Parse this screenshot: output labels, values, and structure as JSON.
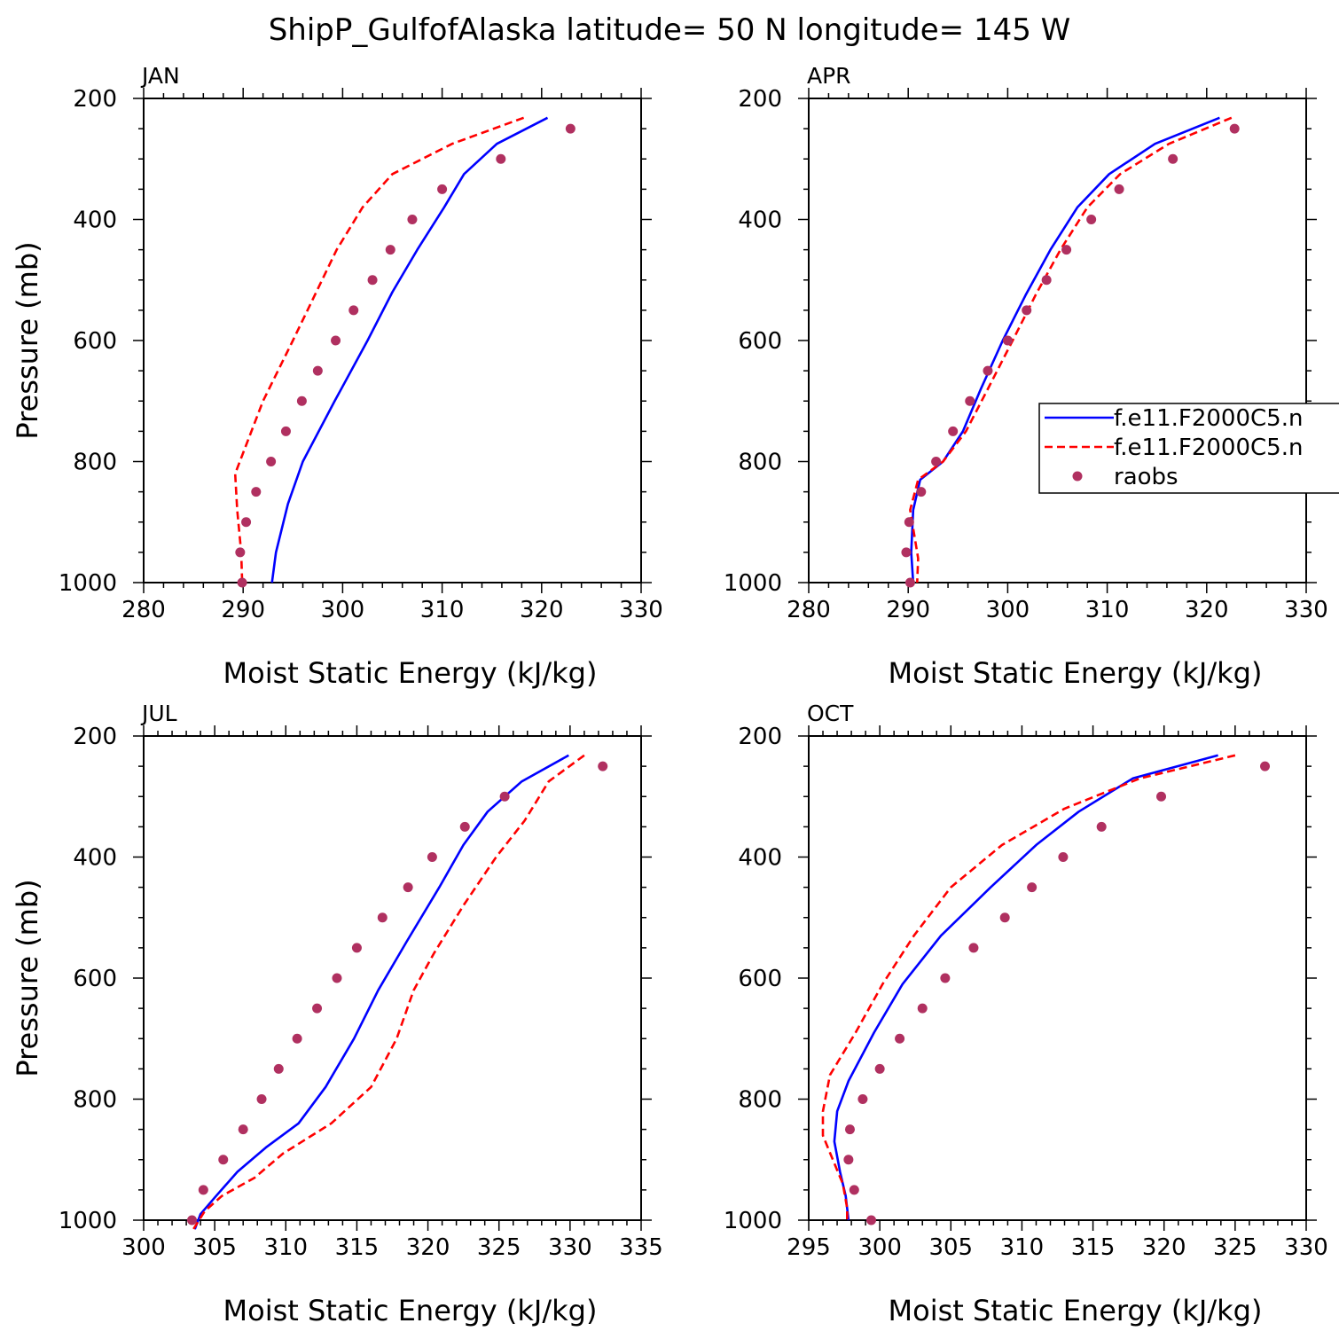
{
  "title": "ShipP_GulfofAlaska  latitude= 50 N longitude= 145 W",
  "legend": {
    "entries": [
      {
        "label": "f.e11.F2000C5.n",
        "color": "#0000ff",
        "style": "solid"
      },
      {
        "label": "f.e11.F2000C5.n",
        "color": "#ff0000",
        "style": "dashed"
      },
      {
        "label": "raobs",
        "color": "#b03060",
        "style": "dot"
      }
    ]
  },
  "chart_data": [
    {
      "type": "line",
      "panel_label": "JAN",
      "xlabel": "Moist Static Energy (kJ/kg)",
      "ylabel": "Pressure (mb)",
      "xlim": [
        280,
        330
      ],
      "ylim": [
        1000,
        200
      ],
      "y_reversed": true,
      "xticks": [
        280,
        290,
        300,
        310,
        320,
        330
      ],
      "yticks": [
        200,
        400,
        600,
        800,
        1000
      ],
      "series": [
        {
          "color": "#0000ff",
          "style": "solid",
          "points": [
            [
              320.6,
              232
            ],
            [
              315.5,
              275
            ],
            [
              312.2,
              325
            ],
            [
              310.2,
              380
            ],
            [
              307.5,
              450
            ],
            [
              305.0,
              520
            ],
            [
              302.5,
              600
            ],
            [
              299.2,
              700
            ],
            [
              296.0,
              800
            ],
            [
              294.5,
              870
            ],
            [
              293.3,
              950
            ],
            [
              292.9,
              1000
            ]
          ]
        },
        {
          "color": "#ff0000",
          "style": "dashed",
          "points": [
            [
              318.2,
              232
            ],
            [
              311.0,
              275
            ],
            [
              305.0,
              325
            ],
            [
              302.0,
              380
            ],
            [
              299.4,
              450
            ],
            [
              297.2,
              525
            ],
            [
              295.0,
              600
            ],
            [
              292.0,
              700
            ],
            [
              289.2,
              820
            ],
            [
              289.4,
              880
            ],
            [
              289.8,
              950
            ],
            [
              289.9,
              1000
            ]
          ]
        },
        {
          "color": "#b03060",
          "style": "dot",
          "points": [
            [
              322.9,
              250
            ],
            [
              315.9,
              300
            ],
            [
              310.0,
              350
            ],
            [
              307.0,
              400
            ],
            [
              304.8,
              450
            ],
            [
              303.0,
              500
            ],
            [
              301.1,
              550
            ],
            [
              299.3,
              600
            ],
            [
              297.5,
              650
            ],
            [
              295.9,
              700
            ],
            [
              294.3,
              750
            ],
            [
              292.8,
              800
            ],
            [
              291.3,
              850
            ],
            [
              290.3,
              900
            ],
            [
              289.7,
              950
            ],
            [
              289.9,
              1000
            ]
          ]
        }
      ]
    },
    {
      "type": "line",
      "panel_label": "APR",
      "xlabel": "Moist Static Energy (kJ/kg)",
      "ylabel": "",
      "xlim": [
        280,
        330
      ],
      "ylim": [
        1000,
        200
      ],
      "y_reversed": true,
      "xticks": [
        280,
        290,
        300,
        310,
        320,
        330
      ],
      "yticks": [
        200,
        400,
        600,
        800,
        1000
      ],
      "series": [
        {
          "color": "#0000ff",
          "style": "solid",
          "points": [
            [
              321.3,
              232
            ],
            [
              314.8,
              275
            ],
            [
              310.2,
              325
            ],
            [
              307.0,
              380
            ],
            [
              304.3,
              450
            ],
            [
              301.8,
              525
            ],
            [
              299.5,
              600
            ],
            [
              297.3,
              680
            ],
            [
              295.5,
              750
            ],
            [
              293.5,
              800
            ],
            [
              291.2,
              830
            ],
            [
              290.5,
              880
            ],
            [
              290.3,
              950
            ],
            [
              290.5,
              1000
            ]
          ]
        },
        {
          "color": "#ff0000",
          "style": "dashed",
          "points": [
            [
              322.5,
              232
            ],
            [
              316.2,
              275
            ],
            [
              311.3,
              325
            ],
            [
              308.0,
              380
            ],
            [
              305.3,
              450
            ],
            [
              302.8,
              525
            ],
            [
              300.5,
              600
            ],
            [
              298.0,
              680
            ],
            [
              295.8,
              750
            ],
            [
              293.5,
              800
            ],
            [
              291.0,
              830
            ],
            [
              290.2,
              880
            ],
            [
              290.6,
              920
            ],
            [
              291.0,
              960
            ],
            [
              290.9,
              1000
            ]
          ]
        },
        {
          "color": "#b03060",
          "style": "dot",
          "points": [
            [
              322.8,
              250
            ],
            [
              316.6,
              300
            ],
            [
              311.2,
              350
            ],
            [
              308.4,
              400
            ],
            [
              305.9,
              450
            ],
            [
              303.9,
              500
            ],
            [
              301.9,
              550
            ],
            [
              300.0,
              600
            ],
            [
              298.0,
              650
            ],
            [
              296.2,
              700
            ],
            [
              294.5,
              750
            ],
            [
              292.8,
              800
            ],
            [
              291.3,
              850
            ],
            [
              290.1,
              900
            ],
            [
              289.8,
              950
            ],
            [
              290.2,
              1000
            ]
          ]
        }
      ]
    },
    {
      "type": "line",
      "panel_label": "JUL",
      "xlabel": "Moist Static Energy (kJ/kg)",
      "ylabel": "Pressure (mb)",
      "xlim": [
        300,
        335
      ],
      "ylim": [
        1000,
        200
      ],
      "y_reversed": true,
      "xticks": [
        300,
        305,
        310,
        315,
        320,
        325,
        330,
        335
      ],
      "yticks": [
        200,
        400,
        600,
        800,
        1000
      ],
      "series": [
        {
          "color": "#0000ff",
          "style": "solid",
          "points": [
            [
              329.9,
              232
            ],
            [
              326.6,
              275
            ],
            [
              324.2,
              325
            ],
            [
              322.5,
              380
            ],
            [
              320.8,
              450
            ],
            [
              318.5,
              540
            ],
            [
              316.5,
              620
            ],
            [
              314.8,
              700
            ],
            [
              312.8,
              780
            ],
            [
              310.9,
              840
            ],
            [
              308.6,
              880
            ],
            [
              306.6,
              920
            ],
            [
              305.1,
              960
            ],
            [
              304.0,
              990
            ],
            [
              303.6,
              1015
            ]
          ]
        },
        {
          "color": "#ff0000",
          "style": "dashed",
          "points": [
            [
              331.0,
              232
            ],
            [
              328.5,
              275
            ],
            [
              326.8,
              340
            ],
            [
              324.8,
              400
            ],
            [
              322.5,
              480
            ],
            [
              320.4,
              560
            ],
            [
              319.0,
              620
            ],
            [
              317.8,
              700
            ],
            [
              316.0,
              780
            ],
            [
              313.2,
              840
            ],
            [
              309.8,
              890
            ],
            [
              307.8,
              930
            ],
            [
              305.5,
              960
            ],
            [
              304.3,
              985
            ],
            [
              303.5,
              1015
            ]
          ]
        },
        {
          "color": "#b03060",
          "style": "dot",
          "points": [
            [
              332.3,
              250
            ],
            [
              325.4,
              300
            ],
            [
              322.6,
              350
            ],
            [
              320.3,
              400
            ],
            [
              318.6,
              450
            ],
            [
              316.8,
              500
            ],
            [
              315.0,
              550
            ],
            [
              313.6,
              600
            ],
            [
              312.2,
              650
            ],
            [
              310.8,
              700
            ],
            [
              309.5,
              750
            ],
            [
              308.3,
              800
            ],
            [
              307.0,
              850
            ],
            [
              305.6,
              900
            ],
            [
              304.2,
              950
            ],
            [
              303.4,
              1000
            ]
          ]
        }
      ]
    },
    {
      "type": "line",
      "panel_label": "OCT",
      "xlabel": "Moist Static Energy (kJ/kg)",
      "ylabel": "",
      "xlim": [
        295,
        330
      ],
      "ylim": [
        1000,
        200
      ],
      "y_reversed": true,
      "xticks": [
        295,
        300,
        305,
        310,
        315,
        320,
        325,
        330
      ],
      "yticks": [
        200,
        400,
        600,
        800,
        1000
      ],
      "series": [
        {
          "color": "#0000ff",
          "style": "solid",
          "points": [
            [
              323.8,
              232
            ],
            [
              317.8,
              270
            ],
            [
              314.0,
              325
            ],
            [
              311.0,
              380
            ],
            [
              307.8,
              450
            ],
            [
              304.3,
              530
            ],
            [
              301.6,
              610
            ],
            [
              299.6,
              690
            ],
            [
              297.8,
              770
            ],
            [
              297.0,
              820
            ],
            [
              296.8,
              870
            ],
            [
              297.2,
              920
            ],
            [
              297.6,
              960
            ],
            [
              297.8,
              1000
            ]
          ]
        },
        {
          "color": "#ff0000",
          "style": "dashed",
          "points": [
            [
              325.0,
              232
            ],
            [
              318.3,
              270
            ],
            [
              313.0,
              320
            ],
            [
              308.6,
              380
            ],
            [
              305.0,
              450
            ],
            [
              302.4,
              530
            ],
            [
              300.2,
              610
            ],
            [
              298.3,
              690
            ],
            [
              296.5,
              760
            ],
            [
              296.0,
              820
            ],
            [
              296.0,
              860
            ],
            [
              296.7,
              900
            ],
            [
              297.4,
              940
            ],
            [
              297.7,
              980
            ],
            [
              297.7,
              1000
            ]
          ]
        },
        {
          "color": "#b03060",
          "style": "dot",
          "points": [
            [
              327.1,
              250
            ],
            [
              319.8,
              300
            ],
            [
              315.6,
              350
            ],
            [
              312.9,
              400
            ],
            [
              310.7,
              450
            ],
            [
              308.8,
              500
            ],
            [
              306.6,
              550
            ],
            [
              304.6,
              600
            ],
            [
              303.0,
              650
            ],
            [
              301.4,
              700
            ],
            [
              300.0,
              750
            ],
            [
              298.8,
              800
            ],
            [
              297.9,
              850
            ],
            [
              297.8,
              900
            ],
            [
              298.2,
              950
            ],
            [
              299.4,
              1000
            ]
          ]
        }
      ]
    }
  ]
}
